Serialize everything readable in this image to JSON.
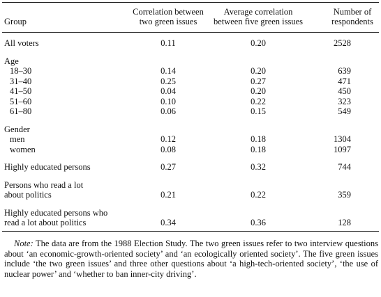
{
  "table": {
    "header": [
      {
        "lines": [
          "Group"
        ]
      },
      {
        "lines": [
          "Correlation between",
          "two green issues"
        ]
      },
      {
        "lines": [
          "Average correlation",
          "between five green issues"
        ]
      },
      {
        "lines": [
          "Number of",
          "respondents"
        ]
      }
    ],
    "body": [
      {
        "label": [
          "All voters"
        ],
        "values": [
          "0.11",
          "0.20",
          "2528"
        ]
      },
      {
        "title": "Age",
        "rows": [
          {
            "label": [
              "18–30"
            ],
            "values": [
              "0.14",
              "0.20",
              "639"
            ]
          },
          {
            "label": [
              "31–40"
            ],
            "values": [
              "0.25",
              "0.27",
              "471"
            ]
          },
          {
            "label": [
              "41–50"
            ],
            "values": [
              "0.04",
              "0.20",
              "450"
            ]
          },
          {
            "label": [
              "51–60"
            ],
            "values": [
              "0.10",
              "0.22",
              "323"
            ]
          },
          {
            "label": [
              "61–80"
            ],
            "values": [
              "0.06",
              "0.15",
              "549"
            ]
          }
        ]
      },
      {
        "title": "Gender",
        "rows": [
          {
            "label": [
              "men"
            ],
            "values": [
              "0.12",
              "0.18",
              "1304"
            ]
          },
          {
            "label": [
              "women"
            ],
            "values": [
              "0.08",
              "0.18",
              "1097"
            ]
          }
        ]
      },
      {
        "label": [
          "Highly educated persons"
        ],
        "values": [
          "0.27",
          "0.32",
          "744"
        ]
      },
      {
        "label": [
          "Persons who read a lot",
          "about politics"
        ],
        "values": [
          "0.21",
          "0.22",
          "359"
        ]
      },
      {
        "label": [
          "Highly educated persons who",
          "read a lot about politics"
        ],
        "values": [
          "0.34",
          "0.36",
          "128"
        ]
      }
    ]
  },
  "note": {
    "label": "Note:",
    "text": "The data are from the 1988 Election Study. The two green issues refer to two interview questions about ‘an economic-growth-oriented society’ and ‘an ecologically oriented society’. The five green issues include ‘the two green issues’ and three other questions about ‘a high-tech-oriented society’, ‘the use of nuclear power’ and ‘whether to ban inner-city driving’."
  }
}
